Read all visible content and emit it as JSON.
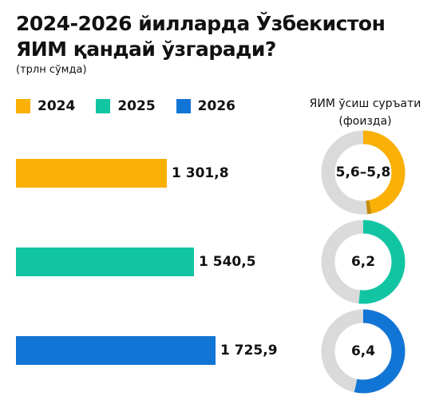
{
  "title": "2024-2026 йилларда Ўзбекистон ЯИМ қандай ўзгаради?",
  "subtitle": "(трлн сўмда)",
  "gauge_title": "ЯИМ ўсиш суръати (фоизда)",
  "colors": {
    "y2024": "#FAB005",
    "y2025": "#11C5A2",
    "y2026": "#1175D6",
    "track": "#DADADA"
  },
  "legend": [
    {
      "label": "2024",
      "color": "#FAB005"
    },
    {
      "label": "2025",
      "color": "#11C5A2"
    },
    {
      "label": "2026",
      "color": "#1175D6"
    }
  ],
  "chart_data": [
    {
      "type": "bar",
      "orientation": "horizontal",
      "categories": [
        "2024",
        "2025",
        "2026"
      ],
      "values": [
        1301.8,
        1540.5,
        1725.9
      ],
      "value_labels": [
        "1 301,8",
        "1 540,5",
        "1 725,9"
      ],
      "unit": "трлн сўм",
      "colors": [
        "#FAB005",
        "#11C5A2",
        "#1175D6"
      ]
    },
    {
      "type": "pie",
      "variant": "donut",
      "title": "ЯИМ ўсиш суръати (фоизда)",
      "categories": [
        "2024",
        "2025",
        "2026"
      ],
      "labels": [
        "5,6–5,8",
        "6,2",
        "6,4"
      ],
      "values_low": [
        5.6,
        6.2,
        6.4
      ],
      "values_high": [
        5.8,
        6.2,
        6.4
      ],
      "colors": [
        "#FAB005",
        "#11C5A2",
        "#1175D6"
      ]
    }
  ]
}
